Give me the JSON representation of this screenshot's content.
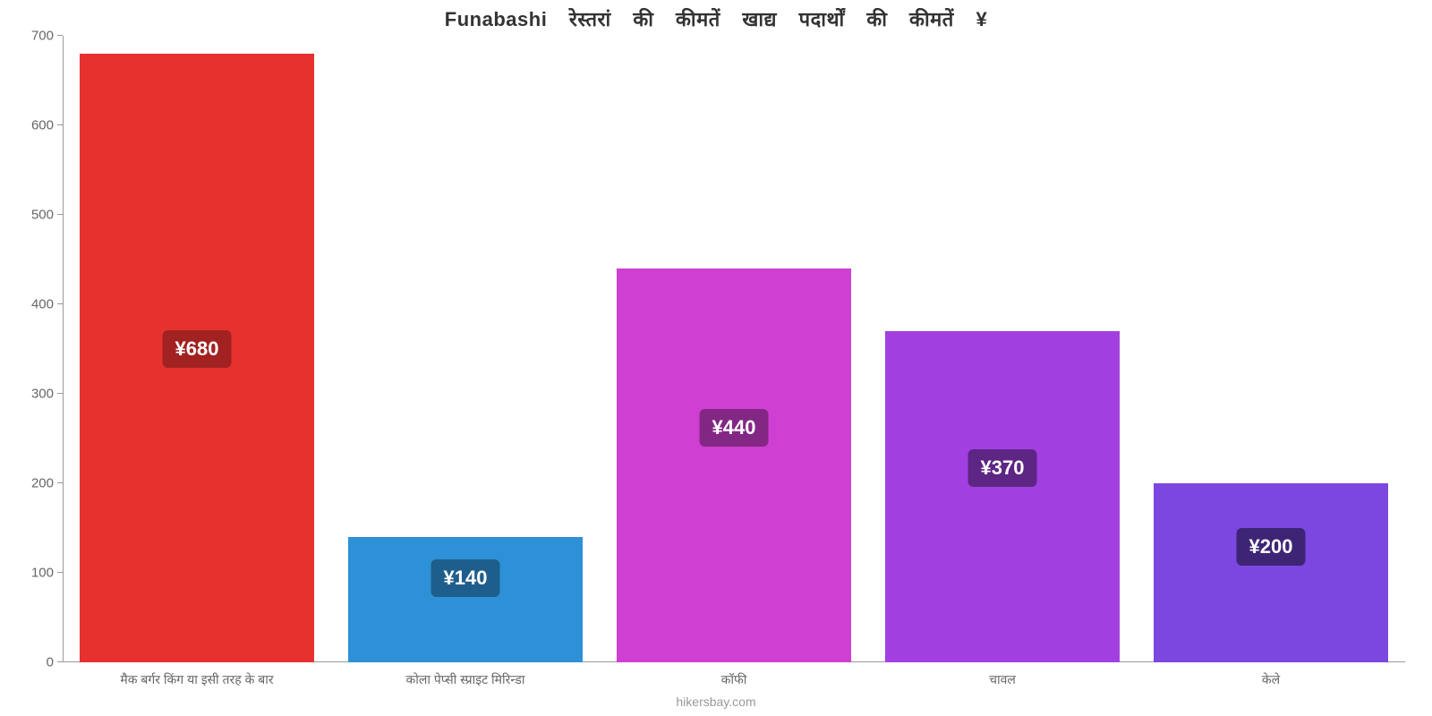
{
  "chart": {
    "type": "bar",
    "title": "Funabashi रेस्तरां की कीमतें खाद्य पदार्थों की कीमतें ¥",
    "title_fontsize": 22,
    "title_color": "#333333",
    "background_color": "#ffffff",
    "axis_color": "#999999",
    "tick_label_color": "#666666",
    "tick_label_fontsize": 15,
    "category_label_fontsize": 14,
    "category_label_color": "#666666",
    "value_label_fontsize": 22,
    "value_label_color": "#ffffff",
    "ylim": [
      0,
      700
    ],
    "yticks": [
      0,
      100,
      200,
      300,
      400,
      500,
      600,
      700
    ],
    "bar_width_ratio": 0.875,
    "bars": [
      {
        "category": "मैक बर्गर किंग या इसी तरह के बार",
        "value": 680,
        "value_label": "¥680",
        "color": "#e6312e",
        "badge_bg": "#a12220"
      },
      {
        "category": "कोला पेप्सी स्प्राइट मिरिन्डा",
        "value": 140,
        "value_label": "¥140",
        "color": "#2e90d6",
        "badge_bg": "#1e5e8c"
      },
      {
        "category": "कॉफी",
        "value": 440,
        "value_label": "¥440",
        "color": "#cf3fd2",
        "badge_bg": "#832785"
      },
      {
        "category": "चावल",
        "value": 370,
        "value_label": "¥370",
        "color": "#a13fe0",
        "badge_bg": "#5d2584"
      },
      {
        "category": "केले",
        "value": 200,
        "value_label": "¥200",
        "color": "#7b47e0",
        "badge_bg": "#3e2475"
      }
    ],
    "watermark": "hikersbay.com",
    "watermark_color": "#999999",
    "watermark_fontsize": 14
  }
}
